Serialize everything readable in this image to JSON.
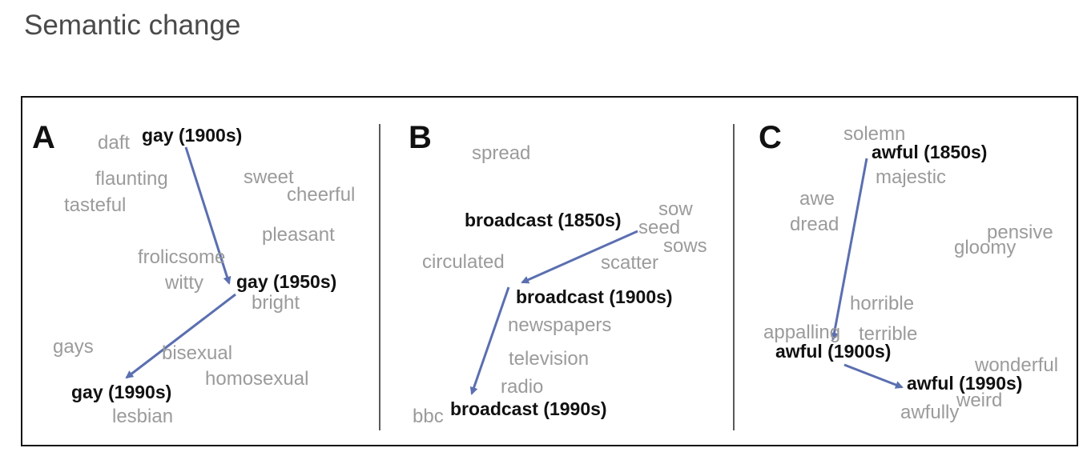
{
  "title": "Semantic change",
  "arrow_color": "#5b6fb0",
  "panels": [
    {
      "letter": "A",
      "target_word": "gay",
      "targets": [
        "gay (1900s)",
        "gay (1950s)",
        "gay (1990s)"
      ],
      "neighbors": [
        "daft",
        "flaunting",
        "tasteful",
        "sweet",
        "cheerful",
        "pleasant",
        "frolicsome",
        "witty",
        "bright",
        "gays",
        "bisexual",
        "homosexual",
        "lesbian"
      ]
    },
    {
      "letter": "B",
      "target_word": "broadcast",
      "targets": [
        "broadcast (1850s)",
        "broadcast (1900s)",
        "broadcast (1990s)"
      ],
      "neighbors": [
        "spread",
        "sow",
        "seed",
        "sows",
        "circulated",
        "scatter",
        "newspapers",
        "television",
        "radio",
        "bbc"
      ]
    },
    {
      "letter": "C",
      "target_word": "awful",
      "targets": [
        "awful (1850s)",
        "awful (1900s)",
        "awful (1990s)"
      ],
      "neighbors": [
        "solemn",
        "majestic",
        "awe",
        "dread",
        "pensive",
        "gloomy",
        "horrible",
        "appalling",
        "terrible",
        "wonderful",
        "weird",
        "awfully"
      ]
    }
  ]
}
